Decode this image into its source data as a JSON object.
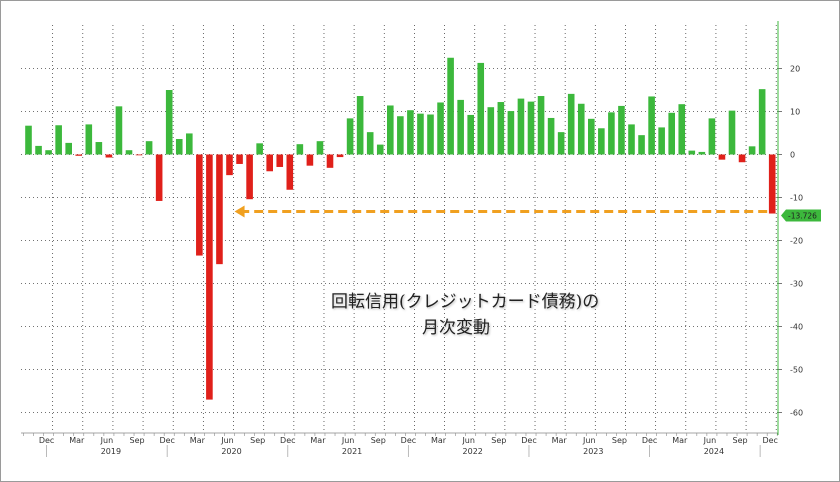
{
  "title_lines": [
    "回転信用(クレジットカード債務)の",
    "月次変動"
  ],
  "chart_data": {
    "type": "bar",
    "title": "回転信用(クレジットカード債務)の 月次変動",
    "xlabel": "",
    "ylabel": "",
    "ylim": [
      -65,
      30
    ],
    "y_ticks": [
      20,
      10,
      0,
      -10,
      -20,
      -30,
      -40,
      -50,
      -60
    ],
    "grid": true,
    "positive_color": "#3cb83c",
    "negative_color": "#e0201a",
    "arrow_color": "#f0a020",
    "last_value_label": "-13.726",
    "start_period": "2018-10",
    "month_labels": [
      {
        "index": 2,
        "label": "Dec"
      },
      {
        "index": 5,
        "label": "Mar"
      },
      {
        "index": 8,
        "label": "Jun"
      },
      {
        "index": 11,
        "label": "Sep"
      },
      {
        "index": 14,
        "label": "Dec"
      },
      {
        "index": 17,
        "label": "Mar"
      },
      {
        "index": 20,
        "label": "Jun"
      },
      {
        "index": 23,
        "label": "Sep"
      },
      {
        "index": 26,
        "label": "Dec"
      },
      {
        "index": 29,
        "label": "Mar"
      },
      {
        "index": 32,
        "label": "Jun"
      },
      {
        "index": 35,
        "label": "Sep"
      },
      {
        "index": 38,
        "label": "Dec"
      },
      {
        "index": 41,
        "label": "Mar"
      },
      {
        "index": 44,
        "label": "Jun"
      },
      {
        "index": 47,
        "label": "Sep"
      },
      {
        "index": 50,
        "label": "Dec"
      },
      {
        "index": 53,
        "label": "Mar"
      },
      {
        "index": 56,
        "label": "Jun"
      },
      {
        "index": 59,
        "label": "Sep"
      },
      {
        "index": 62,
        "label": "Dec"
      },
      {
        "index": 65,
        "label": "Mar"
      },
      {
        "index": 68,
        "label": "Jun"
      },
      {
        "index": 71,
        "label": "Sep"
      },
      {
        "index": 74,
        "label": "Dec"
      }
    ],
    "year_labels": [
      {
        "index": 8,
        "label": "2019"
      },
      {
        "index": 20,
        "label": "2020"
      },
      {
        "index": 32,
        "label": "2021"
      },
      {
        "index": 44,
        "label": "2022"
      },
      {
        "index": 56,
        "label": "2023"
      },
      {
        "index": 68,
        "label": "2024"
      }
    ],
    "values": [
      6.7,
      2.0,
      1.0,
      6.8,
      2.7,
      -0.3,
      7.0,
      2.9,
      -0.7,
      11.2,
      1.0,
      -0.1,
      3.1,
      -10.8,
      15.0,
      3.6,
      4.9,
      -23.5,
      -57.0,
      -25.5,
      -4.8,
      -2.2,
      -10.4,
      2.6,
      -3.9,
      -2.9,
      -8.2,
      2.4,
      -2.6,
      3.1,
      -3.1,
      -0.6,
      8.4,
      13.6,
      5.2,
      2.3,
      11.4,
      8.9,
      10.3,
      9.5,
      9.3,
      12.1,
      22.5,
      12.7,
      9.2,
      21.3,
      11.0,
      12.2,
      10.1,
      13.0,
      12.3,
      13.6,
      8.5,
      5.2,
      14.1,
      11.8,
      8.3,
      6.1,
      9.8,
      11.3,
      7.0,
      4.5,
      13.5,
      6.3,
      9.7,
      11.7,
      0.9,
      0.6,
      8.4,
      -1.2,
      10.2,
      -1.8,
      1.9,
      15.2,
      -13.726
    ]
  }
}
